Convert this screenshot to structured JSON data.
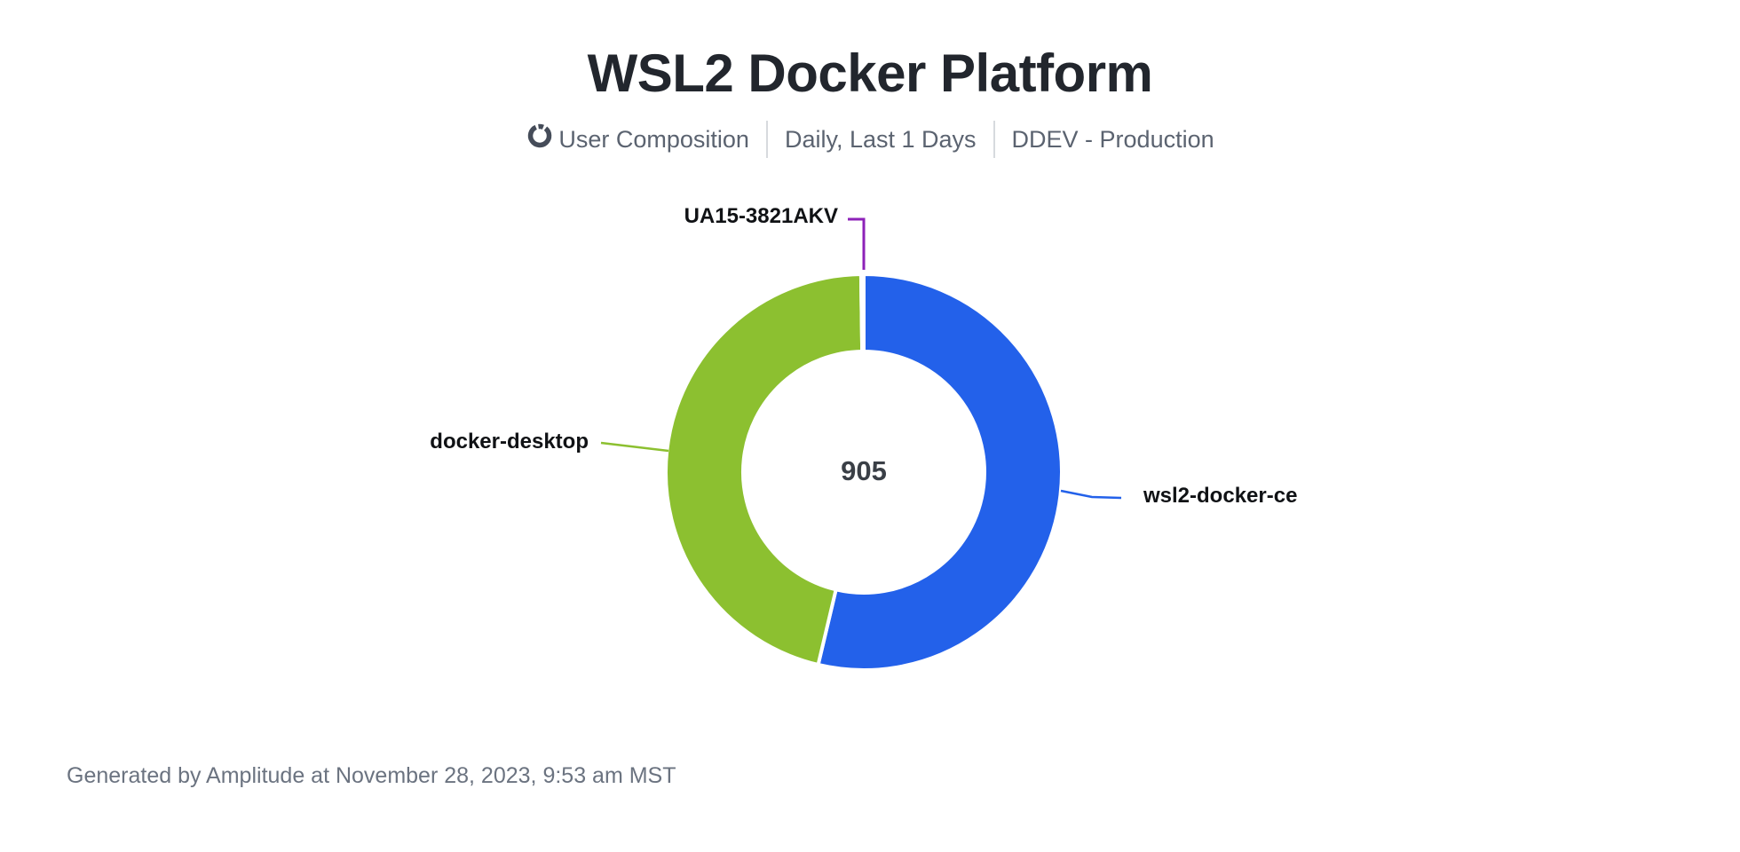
{
  "header": {
    "title": "WSL2 Docker Platform",
    "chart_type_label": "User Composition",
    "date_range": "Daily, Last 1 Days",
    "project": "DDEV - Production"
  },
  "chart_data": {
    "type": "pie",
    "subtype": "donut",
    "title": "WSL2 Docker Platform",
    "categories": [
      "wsl2-docker-ce",
      "docker-desktop",
      "UA15-3821AKV"
    ],
    "values": [
      486,
      417,
      2
    ],
    "values_note": "estimated from slice angles; only the total 905 is printed on the chart",
    "total": 905,
    "colors": [
      "#2361ea",
      "#8cc030",
      "#8d22b8"
    ],
    "start_angle_deg": 0,
    "direction": "clockwise",
    "legend_position": "callout-labels",
    "center_text": "905"
  },
  "footer": {
    "generated_by": "Generated by Amplitude at November 28, 2023, 9:53 am MST"
  }
}
